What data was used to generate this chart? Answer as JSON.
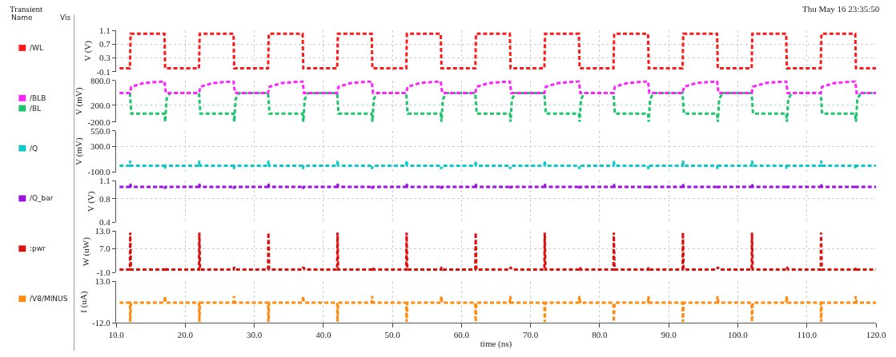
{
  "chart_data": [
    {
      "type": "line",
      "annotations": [
        "Transient",
        "Name",
        "Vis",
        "Thu May 16 23:35:50"
      ],
      "ylabel": "V (V)",
      "xlim": [
        10,
        120
      ],
      "xticks": [
        10,
        20,
        30,
        40,
        50,
        60,
        70,
        80,
        90,
        100,
        110,
        120
      ],
      "ylim": [
        -0.1,
        1.1
      ],
      "yticks": [
        -0.1,
        0.3,
        0.7,
        1.1
      ],
      "tick_labels": "y",
      "grid": true,
      "legend": "left",
      "line_style": "dashed",
      "series": [
        {
          "name": "/WL",
          "color": "#ff1a1a",
          "x": [
            10.5,
            12,
            12.1,
            17,
            17.1,
            22,
            22.1,
            27,
            27.1,
            32,
            32.1,
            37,
            37.1,
            42,
            42.1,
            47,
            47.1,
            52,
            52.1,
            57,
            57.1,
            62,
            62.1,
            67,
            67.1,
            72,
            72.1,
            77,
            77.1,
            82,
            82.1,
            87,
            87.1,
            92,
            92.1,
            97,
            97.1,
            102,
            102.1,
            107,
            107.1,
            112,
            112.1,
            117,
            117.1,
            120
          ],
          "values": [
            0,
            0,
            1,
            1,
            0,
            0,
            1,
            1,
            0,
            0,
            1,
            1,
            0,
            0,
            1,
            1,
            0,
            0,
            1,
            1,
            0,
            0,
            1,
            1,
            0,
            0,
            1,
            1,
            0,
            0,
            1,
            1,
            0,
            0,
            1,
            1,
            0,
            0,
            1,
            1,
            0,
            0,
            1,
            1,
            0,
            0
          ]
        }
      ]
    },
    {
      "type": "line",
      "ylabel": "V (mV)",
      "xlim": [
        10,
        120
      ],
      "xticks": [
        10,
        20,
        30,
        40,
        50,
        60,
        70,
        80,
        90,
        100,
        110,
        120
      ],
      "ylim": [
        -200,
        800
      ],
      "yticks": [
        {
          "value": -200,
          "label": "-200.0"
        },
        {
          "value": 200,
          "label": "200.0"
        },
        {
          "value": 800,
          "label": "800.0"
        }
      ],
      "tick_labels": "y",
      "grid": true,
      "legend": "left",
      "line_style": "dashed",
      "series": [
        {
          "name": "/BLB",
          "color": "#ff22ff",
          "x": [
            10.5,
            12,
            12.2,
            14,
            17,
            17.2,
            22,
            22.2,
            24,
            27,
            27.2,
            32,
            32.2,
            34,
            37,
            37.2,
            42,
            42.2,
            44,
            47,
            47.2,
            52,
            52.2,
            54,
            57,
            57.2,
            62,
            62.2,
            64,
            67,
            67.2,
            72,
            72.2,
            74,
            77,
            77.2,
            82,
            82.2,
            84,
            87,
            87.2,
            92,
            92.2,
            94,
            97,
            97.2,
            102,
            102.2,
            104,
            107,
            107.2,
            112,
            112.2,
            114,
            117,
            117.2,
            120
          ],
          "values": [
            500,
            500,
            650,
            740,
            780,
            500,
            500,
            650,
            740,
            780,
            500,
            500,
            650,
            740,
            780,
            500,
            500,
            650,
            740,
            780,
            500,
            500,
            650,
            740,
            780,
            500,
            500,
            650,
            740,
            780,
            500,
            500,
            650,
            740,
            780,
            500,
            500,
            650,
            740,
            780,
            500,
            500,
            650,
            740,
            780,
            500,
            500,
            650,
            740,
            780,
            500,
            500,
            650,
            740,
            780,
            500,
            500
          ]
        },
        {
          "name": "/BL",
          "color": "#1ec36e",
          "x": [
            12,
            12.2,
            17,
            17.1,
            17.3,
            17.8,
            22,
            22.2,
            27,
            27.1,
            27.3,
            27.8,
            32,
            32.2,
            37,
            37.1,
            37.3,
            37.8,
            42,
            42.2,
            47,
            47.1,
            47.3,
            47.8,
            52,
            52.2,
            57,
            57.1,
            57.3,
            57.8,
            62,
            62.2,
            67,
            67.1,
            67.3,
            67.8,
            72,
            72.2,
            77,
            77.1,
            77.3,
            77.8,
            82,
            82.2,
            87,
            87.1,
            87.3,
            87.8,
            92,
            92.2,
            97,
            97.1,
            97.3,
            97.8,
            102,
            102.2,
            107,
            107.1,
            107.3,
            107.8,
            112,
            112.2,
            117,
            117.1,
            117.3,
            117.8,
            120
          ],
          "values": [
            500,
            0,
            0,
            -200,
            350,
            500,
            500,
            0,
            0,
            -200,
            350,
            500,
            500,
            0,
            0,
            -200,
            350,
            500,
            500,
            0,
            0,
            -200,
            350,
            500,
            500,
            0,
            0,
            -200,
            350,
            500,
            500,
            0,
            0,
            -200,
            350,
            500,
            500,
            0,
            0,
            -200,
            350,
            500,
            500,
            0,
            0,
            -200,
            350,
            500,
            500,
            0,
            0,
            -200,
            350,
            500,
            500,
            0,
            0,
            -200,
            350,
            500,
            500,
            0,
            0,
            -200,
            350,
            500,
            500
          ]
        }
      ]
    },
    {
      "type": "line",
      "ylabel": "V (mV)",
      "xlim": [
        10,
        120
      ],
      "xticks": [
        10,
        20,
        30,
        40,
        50,
        60,
        70,
        80,
        90,
        100,
        110,
        120
      ],
      "ylim": [
        -100,
        550
      ],
      "yticks": [
        {
          "value": -100,
          "label": "-100.0"
        },
        {
          "value": 300,
          "label": "300.0"
        },
        {
          "value": 550,
          "label": "550.0"
        }
      ],
      "tick_labels": "y",
      "grid": true,
      "legend": "left",
      "line_style": "dashed",
      "series": [
        {
          "name": "/Q",
          "color": "#10c8c8",
          "x": [
            10.5,
            12,
            12.05,
            12.15,
            17,
            17.05,
            17.15,
            22,
            22.05,
            22.15,
            27,
            27.05,
            27.15,
            32,
            32.05,
            32.15,
            37,
            37.05,
            37.15,
            42,
            42.05,
            42.15,
            47,
            47.05,
            47.15,
            52,
            52.05,
            52.15,
            57,
            57.05,
            57.15,
            62,
            62.05,
            62.15,
            67,
            67.05,
            67.15,
            72,
            72.05,
            72.15,
            77,
            77.05,
            77.15,
            82,
            82.05,
            82.15,
            87,
            87.05,
            87.15,
            92,
            92.05,
            92.15,
            97,
            97.05,
            97.15,
            102,
            102.05,
            102.15,
            107,
            107.05,
            107.15,
            112,
            112.05,
            112.15,
            117,
            117.05,
            117.15,
            120
          ],
          "values": [
            0,
            0,
            80,
            0,
            0,
            -50,
            0,
            0,
            80,
            0,
            0,
            -50,
            0,
            0,
            80,
            0,
            0,
            -50,
            0,
            0,
            80,
            0,
            0,
            -50,
            0,
            0,
            80,
            0,
            0,
            -50,
            0,
            0,
            80,
            0,
            0,
            -50,
            0,
            0,
            80,
            0,
            0,
            -50,
            0,
            0,
            80,
            0,
            0,
            -50,
            0,
            0,
            80,
            0,
            0,
            -50,
            0,
            0,
            80,
            0,
            0,
            -50,
            0,
            0,
            80,
            0,
            0,
            -50,
            0,
            0
          ]
        }
      ]
    },
    {
      "type": "line",
      "ylabel": "V (V)",
      "xlim": [
        10,
        120
      ],
      "xticks": [
        10,
        20,
        30,
        40,
        50,
        60,
        70,
        80,
        90,
        100,
        110,
        120
      ],
      "ylim": [
        0.4,
        1.1
      ],
      "yticks": [
        0.4,
        0.8,
        1.1
      ],
      "tick_labels": "y",
      "grid": true,
      "legend": "left",
      "line_style": "dashed",
      "series": [
        {
          "name": "/Q_bar",
          "color": "#9a10e0",
          "x": [
            10.5,
            12,
            12.05,
            12.15,
            17,
            17.05,
            17.15,
            22,
            22.05,
            22.15,
            27,
            27.05,
            27.15,
            32,
            32.05,
            32.15,
            37,
            37.05,
            37.15,
            42,
            42.05,
            42.15,
            47,
            47.05,
            47.15,
            52,
            52.05,
            52.15,
            57,
            57.05,
            57.15,
            62,
            62.05,
            62.15,
            67,
            67.05,
            67.15,
            72,
            72.05,
            72.15,
            77,
            77.05,
            77.15,
            82,
            82.05,
            82.15,
            87,
            87.05,
            87.15,
            92,
            92.05,
            92.15,
            97,
            97.05,
            97.15,
            102,
            102.05,
            102.15,
            107,
            107.05,
            107.15,
            112,
            112.05,
            112.15,
            117,
            117.05,
            117.15,
            120
          ],
          "values": [
            1.0,
            1.0,
            1.05,
            1.0,
            1.0,
            0.97,
            1.0,
            1.0,
            1.05,
            1.0,
            1.0,
            0.97,
            1.0,
            1.0,
            1.05,
            1.0,
            1.0,
            0.97,
            1.0,
            1.0,
            1.05,
            1.0,
            1.0,
            0.97,
            1.0,
            1.0,
            1.05,
            1.0,
            1.0,
            0.97,
            1.0,
            1.0,
            1.05,
            1.0,
            1.0,
            0.97,
            1.0,
            1.0,
            1.05,
            1.0,
            1.0,
            0.97,
            1.0,
            1.0,
            1.05,
            1.0,
            1.0,
            0.97,
            1.0,
            1.0,
            1.05,
            1.0,
            1.0,
            0.97,
            1.0,
            1.0,
            1.05,
            1.0,
            1.0,
            0.97,
            1.0,
            1.0,
            1.05,
            1.0,
            1.0,
            0.97,
            1.0,
            1.0
          ]
        }
      ]
    },
    {
      "type": "line",
      "ylabel": "W (uW)",
      "xlim": [
        10,
        120
      ],
      "xticks": [
        10,
        20,
        30,
        40,
        50,
        60,
        70,
        80,
        90,
        100,
        110,
        120
      ],
      "ylim": [
        -1,
        13
      ],
      "yticks": [
        {
          "value": -1,
          "label": "-1.0"
        },
        {
          "value": 7,
          "label": "7.0"
        },
        {
          "value": 13,
          "label": "13.0"
        }
      ],
      "tick_labels": "y",
      "grid": true,
      "legend": "left",
      "line_style": "dashed",
      "series": [
        {
          "name": ":pwr",
          "color": "#dd1010",
          "x": [
            10.5,
            12,
            12.05,
            12.15,
            17,
            17.1,
            17.3,
            22,
            22.05,
            22.15,
            27,
            27.1,
            27.3,
            32,
            32.05,
            32.15,
            37,
            37.1,
            37.3,
            42,
            42.05,
            42.15,
            47,
            47.1,
            47.3,
            52,
            52.05,
            52.15,
            57,
            57.1,
            57.3,
            62,
            62.05,
            62.15,
            67,
            67.1,
            67.3,
            72,
            72.05,
            72.15,
            77,
            77.1,
            77.3,
            82,
            82.05,
            82.15,
            87,
            87.1,
            87.3,
            92,
            92.05,
            92.15,
            97,
            97.1,
            97.3,
            102,
            102.05,
            102.15,
            107,
            107.1,
            107.3,
            112,
            112.05,
            112.15,
            117,
            117.1,
            117.3,
            120
          ],
          "values": [
            0,
            0,
            12.5,
            0,
            0,
            0.8,
            0,
            0,
            12.5,
            0,
            0,
            0.8,
            0,
            0,
            12.5,
            0,
            0,
            0.8,
            0,
            0,
            12.5,
            0,
            0,
            0.8,
            0,
            0,
            12.5,
            0,
            0,
            0.8,
            0,
            0,
            12.5,
            0,
            0,
            0.8,
            0,
            0,
            12.5,
            0,
            0,
            0.8,
            0,
            0,
            12.5,
            0,
            0,
            0.8,
            0,
            0,
            12.5,
            0,
            0,
            0.8,
            0,
            0,
            12.5,
            0,
            0,
            0.8,
            0,
            0,
            12.5,
            0,
            0,
            0.8,
            0,
            0
          ]
        }
      ]
    },
    {
      "type": "line",
      "ylabel": "I (uA)",
      "xlabel": "time (ns)",
      "xlim": [
        10,
        120
      ],
      "xticks": [
        {
          "value": 10,
          "label": "10.0"
        },
        {
          "value": 20,
          "label": "20.0"
        },
        {
          "value": 30,
          "label": "30.0"
        },
        {
          "value": 40,
          "label": "40.0"
        },
        {
          "value": 50,
          "label": "50.0"
        },
        {
          "value": 60,
          "label": "60.0"
        },
        {
          "value": 70,
          "label": "70.0"
        },
        {
          "value": 80,
          "label": "80.0"
        },
        {
          "value": 90,
          "label": "90.0"
        },
        {
          "value": 100,
          "label": "100.0"
        },
        {
          "value": 110,
          "label": "110.0"
        },
        {
          "value": 120,
          "label": "120.0"
        }
      ],
      "ylim": [
        -12,
        13
      ],
      "yticks": [
        {
          "value": -12,
          "label": "-12.0"
        },
        {
          "value": 13,
          "label": "13.0"
        }
      ],
      "grid": true,
      "legend": "left",
      "line_style": "dashed",
      "series": [
        {
          "name": "/V8/MINUS",
          "color": "#ff8a10",
          "x": [
            10.5,
            12,
            12.05,
            12.15,
            17,
            17.05,
            17.2,
            22,
            22.05,
            22.15,
            27,
            27.05,
            27.2,
            32,
            32.05,
            32.15,
            37,
            37.05,
            37.2,
            42,
            42.05,
            42.15,
            47,
            47.05,
            47.2,
            52,
            52.05,
            52.15,
            57,
            57.05,
            57.2,
            62,
            62.05,
            62.15,
            67,
            67.05,
            67.2,
            72,
            72.05,
            72.15,
            77,
            77.05,
            77.2,
            82,
            82.05,
            82.15,
            87,
            87.05,
            87.2,
            92,
            92.05,
            92.15,
            97,
            97.05,
            97.2,
            102,
            102.05,
            102.15,
            107,
            107.05,
            107.2,
            112,
            112.05,
            112.15,
            117,
            117.05,
            117.2,
            120
          ],
          "values": [
            0,
            0,
            -11.5,
            0,
            0,
            4,
            0,
            0,
            -11.5,
            0,
            0,
            4,
            0,
            0,
            -11.5,
            0,
            0,
            4,
            0,
            0,
            -11.5,
            0,
            0,
            4,
            0,
            0,
            -11.5,
            0,
            0,
            4,
            0,
            0,
            -11.5,
            0,
            0,
            4,
            0,
            0,
            -11.5,
            0,
            0,
            4,
            0,
            0,
            -11.5,
            0,
            0,
            4,
            0,
            0,
            -11.5,
            0,
            0,
            4,
            0,
            0,
            -11.5,
            0,
            0,
            4,
            0,
            0,
            -11.5,
            0,
            0,
            4,
            0,
            0
          ]
        }
      ]
    }
  ]
}
